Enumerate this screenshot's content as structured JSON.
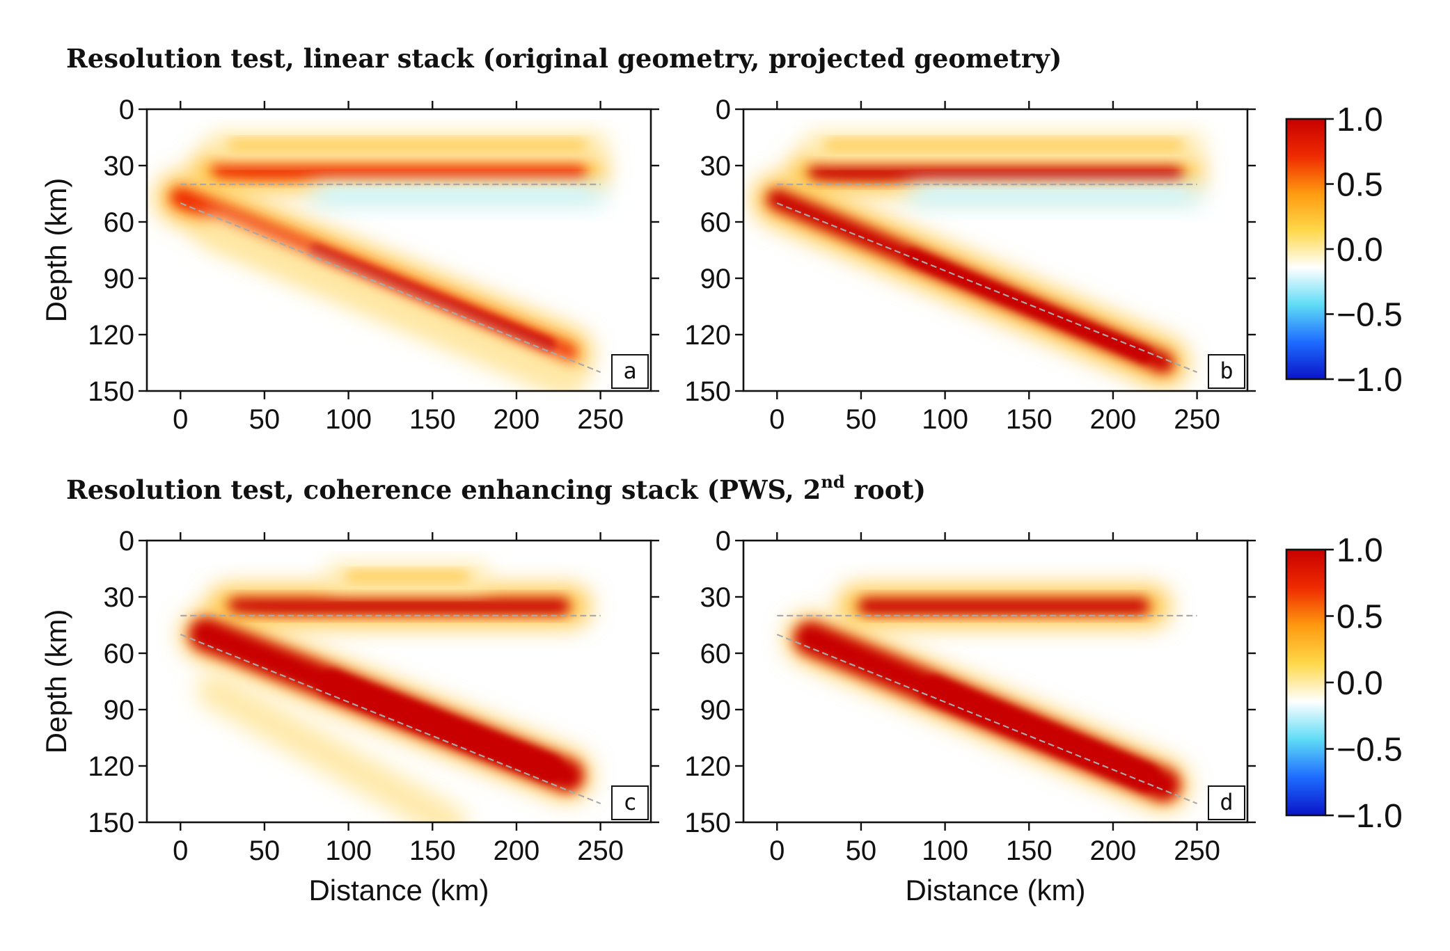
{
  "titles": {
    "top": "Resolution test, linear stack (original geometry, projected geometry)",
    "bottom_main": "Resolution test, coherence enhancing stack (PWS, 2",
    "bottom_sup": "nd",
    "bottom_end": " root)"
  },
  "colorbar": {
    "ticks": [
      "1.0",
      "0.5",
      "0.0",
      "−0.5",
      "−1.0"
    ],
    "colors": [
      "#0a14c8",
      "#1e6cff",
      "#5fdcf5",
      "#ffffff",
      "#ffd84a",
      "#ff9a10",
      "#ee2a00",
      "#c80000"
    ]
  },
  "chart_data": [
    {
      "type": "heatmap",
      "panel": "a",
      "xlabel": "",
      "ylabel": "Depth (km)",
      "xlim": [
        -20,
        280
      ],
      "ylim": [
        150,
        0
      ],
      "xticks": [
        "0",
        "50",
        "100",
        "150",
        "200",
        "250"
      ],
      "yticks": [
        "0",
        "30",
        "60",
        "90",
        "120",
        "150"
      ],
      "reference_lines": [
        {
          "x": [
            0,
            250
          ],
          "y": [
            40,
            40
          ]
        },
        {
          "x": [
            0,
            250
          ],
          "y": [
            50,
            140
          ]
        }
      ],
      "features": [
        {
          "kind": "horizontal_band",
          "x": [
            10,
            250
          ],
          "depth": 33,
          "amplitude": 0.8
        },
        {
          "kind": "horizontal_band",
          "x": [
            20,
            250
          ],
          "depth": 19,
          "amplitude": 0.3
        },
        {
          "kind": "horizontal_band",
          "x": [
            80,
            250
          ],
          "depth": 46,
          "amplitude": -0.15
        },
        {
          "kind": "dipping_band",
          "x": [
            0,
            230
          ],
          "depth": [
            47,
            130
          ],
          "amplitude": 0.7
        },
        {
          "kind": "dipping_band",
          "x": [
            20,
            230
          ],
          "depth": [
            65,
            145
          ],
          "amplitude": 0.2
        }
      ]
    },
    {
      "type": "heatmap",
      "panel": "b",
      "xlabel": "",
      "ylabel": "",
      "xlim": [
        -20,
        280
      ],
      "ylim": [
        150,
        0
      ],
      "xticks": [
        "0",
        "50",
        "100",
        "150",
        "200",
        "250"
      ],
      "yticks": [
        "0",
        "30",
        "60",
        "90",
        "120",
        "150"
      ],
      "reference_lines": [
        {
          "x": [
            0,
            250
          ],
          "y": [
            40,
            40
          ]
        },
        {
          "x": [
            0,
            250
          ],
          "y": [
            50,
            140
          ]
        }
      ],
      "features": [
        {
          "kind": "horizontal_band",
          "x": [
            10,
            250
          ],
          "depth": 34,
          "amplitude": 0.9
        },
        {
          "kind": "horizontal_band",
          "x": [
            20,
            250
          ],
          "depth": 19,
          "amplitude": 0.3
        },
        {
          "kind": "horizontal_band",
          "x": [
            80,
            250
          ],
          "depth": 46,
          "amplitude": -0.15
        },
        {
          "kind": "dipping_band",
          "x": [
            0,
            230
          ],
          "depth": [
            48,
            135
          ],
          "amplitude": 0.85
        }
      ]
    },
    {
      "type": "heatmap",
      "panel": "c",
      "xlabel": "Distance (km)",
      "ylabel": "Depth (km)",
      "xlim": [
        -20,
        280
      ],
      "ylim": [
        150,
        0
      ],
      "xticks": [
        "0",
        "50",
        "100",
        "150",
        "200",
        "250"
      ],
      "yticks": [
        "0",
        "30",
        "60",
        "90",
        "120",
        "150"
      ],
      "reference_lines": [
        {
          "x": [
            0,
            250
          ],
          "y": [
            40,
            40
          ]
        },
        {
          "x": [
            0,
            250
          ],
          "y": [
            50,
            140
          ]
        }
      ],
      "features": [
        {
          "kind": "horizontal_band",
          "x": [
            20,
            240
          ],
          "depth": 35,
          "amplitude": 1.0
        },
        {
          "kind": "horizontal_band",
          "x": [
            90,
            180
          ],
          "depth": 19,
          "amplitude": 0.2
        },
        {
          "kind": "dipping_band",
          "x": [
            15,
            230
          ],
          "depth": [
            50,
            125
          ],
          "amplitude": 1.0
        },
        {
          "kind": "dipping_band",
          "x": [
            20,
            160
          ],
          "depth": [
            80,
            150
          ],
          "amplitude": 0.15
        }
      ]
    },
    {
      "type": "heatmap",
      "panel": "d",
      "xlabel": "Distance (km)",
      "ylabel": "",
      "xlim": [
        -20,
        280
      ],
      "ylim": [
        150,
        0
      ],
      "xticks": [
        "0",
        "50",
        "100",
        "150",
        "200",
        "250"
      ],
      "yticks": [
        "0",
        "30",
        "60",
        "90",
        "120",
        "150"
      ],
      "reference_lines": [
        {
          "x": [
            0,
            250
          ],
          "y": [
            40,
            40
          ]
        },
        {
          "x": [
            0,
            250
          ],
          "y": [
            50,
            140
          ]
        }
      ],
      "features": [
        {
          "kind": "horizontal_band",
          "x": [
            40,
            230
          ],
          "depth": 35,
          "amplitude": 1.0
        },
        {
          "kind": "dipping_band",
          "x": [
            20,
            230
          ],
          "depth": [
            52,
            130
          ],
          "amplitude": 1.0
        }
      ]
    }
  ]
}
